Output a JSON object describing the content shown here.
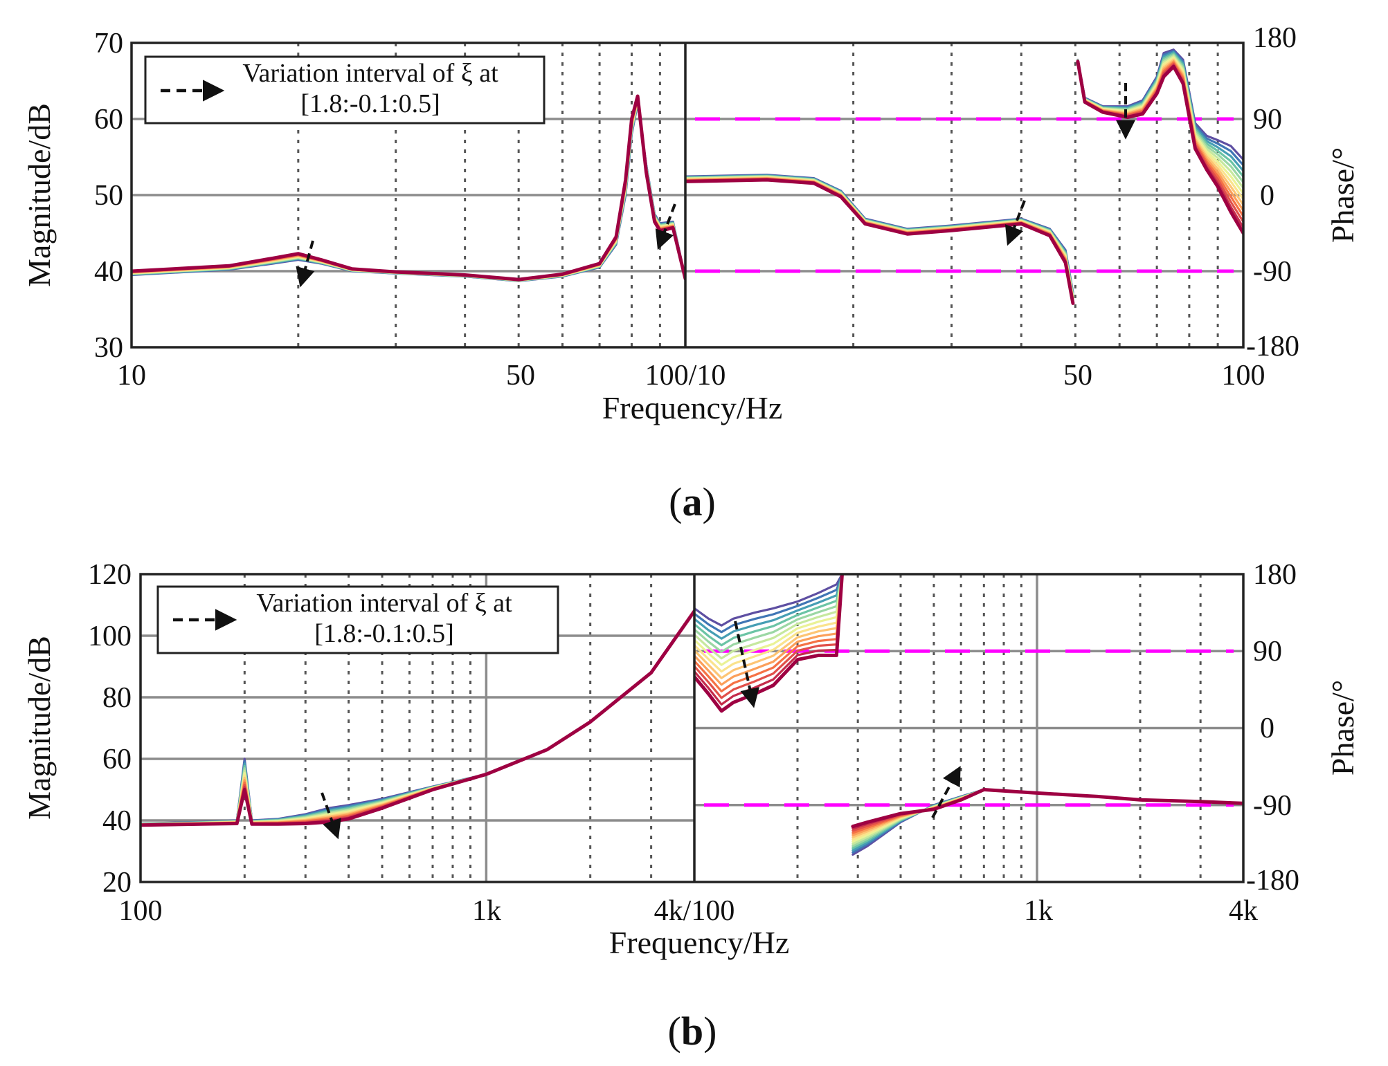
{
  "panels": [
    {
      "id": "a",
      "caption": "a",
      "xlabel": "Frequency/Hz",
      "ylabel_left": "Magnitude/dB",
      "ylabel_right": "Phase/°",
      "legend": {
        "line1": "Variation interval of ξ at",
        "line2": "[1.8:-0.1:0.5]"
      },
      "left_xticks": [
        "10",
        "50"
      ],
      "joint_tick": "100/10",
      "right_xticks": [
        "50",
        "100"
      ],
      "yticks_left": [
        "70",
        "60",
        "50",
        "40",
        "30"
      ],
      "yticks_right": [
        "180",
        "90",
        "0",
        "-90",
        "-180"
      ]
    },
    {
      "id": "b",
      "caption": "b",
      "xlabel": "Frequency/Hz",
      "ylabel_left": "Magnitude/dB",
      "ylabel_right": "Phase/°",
      "legend": {
        "line1": "Variation interval of ξ at",
        "line2": "[1.8:-0.1:0.5]"
      },
      "left_xticks": [
        "100",
        "1k"
      ],
      "joint_tick": "4k/100",
      "right_xticks": [
        "1k",
        "4k"
      ],
      "yticks_left": [
        "120",
        "100",
        "80",
        "60",
        "40",
        "20"
      ],
      "yticks_right": [
        "180",
        "90",
        "0",
        "-90",
        "-180"
      ]
    }
  ],
  "chart_data": [
    {
      "type": "line",
      "panel": "a",
      "subplot": "magnitude",
      "title": "",
      "xlabel": "Frequency/Hz",
      "ylabel": "Magnitude/dB",
      "xscale": "log",
      "xlim": [
        10,
        100
      ],
      "ylim": [
        30,
        70
      ],
      "parameter": "ξ",
      "parameter_values": [
        1.8,
        0.5
      ],
      "series": [
        {
          "name": "ξ=1.8",
          "color": "#5e4fa2",
          "x": [
            10,
            15,
            18,
            20,
            22,
            25,
            30,
            40,
            50,
            60,
            70,
            75,
            78,
            80,
            82,
            85,
            88,
            90,
            95,
            100
          ],
          "y": [
            39.5,
            40.2,
            41.0,
            41.5,
            41.0,
            40.0,
            39.7,
            39.3,
            38.7,
            39.3,
            40.5,
            43.5,
            50.0,
            58.0,
            62.0,
            54.0,
            47.5,
            46.3,
            46.5,
            39.0
          ]
        },
        {
          "name": "ξ=0.5",
          "color": "#9e0142",
          "x": [
            10,
            15,
            18,
            20,
            22,
            25,
            30,
            40,
            50,
            60,
            70,
            75,
            78,
            80,
            82,
            85,
            88,
            90,
            95,
            100
          ],
          "y": [
            40.0,
            40.7,
            41.7,
            42.3,
            41.5,
            40.3,
            39.9,
            39.5,
            38.9,
            39.6,
            41.0,
            44.5,
            52.0,
            60.0,
            63.0,
            53.0,
            46.5,
            45.3,
            45.7,
            39.0
          ]
        }
      ]
    },
    {
      "type": "line",
      "panel": "a",
      "subplot": "phase",
      "title": "",
      "xlabel": "Frequency/Hz",
      "ylabel": "Phase/°",
      "xscale": "log",
      "xlim": [
        10,
        100
      ],
      "ylim": [
        -180,
        180
      ],
      "reference_lines": [
        90,
        -90
      ],
      "reference_color": "#ff00ff",
      "series": [
        {
          "name": "ξ=1.8",
          "color": "#5e4fa2",
          "x": [
            10,
            14,
            17,
            19,
            21,
            25,
            30,
            40,
            45,
            48,
            49.5,
            50.5,
            52,
            56,
            62,
            66,
            70,
            72,
            75,
            78,
            82,
            86,
            90,
            95,
            100
          ],
          "y": [
            22,
            24,
            20,
            5,
            -28,
            -40,
            -36,
            -28,
            -40,
            -65,
            -115,
            160,
            115,
            105,
            105,
            112,
            140,
            168,
            172,
            160,
            85,
            70,
            65,
            58,
            42
          ]
        },
        {
          "name": "ξ=0.5",
          "color": "#9e0142",
          "x": [
            10,
            14,
            17,
            19,
            21,
            25,
            30,
            40,
            45,
            48,
            49.5,
            50.5,
            52,
            56,
            62,
            66,
            70,
            72,
            75,
            78,
            82,
            86,
            90,
            95,
            100
          ],
          "y": [
            16,
            18,
            14,
            -2,
            -34,
            -46,
            -42,
            -34,
            -48,
            -80,
            -128,
            158,
            110,
            98,
            92,
            96,
            120,
            140,
            152,
            132,
            55,
            30,
            10,
            -20,
            -45
          ]
        }
      ]
    },
    {
      "type": "line",
      "panel": "b",
      "subplot": "magnitude",
      "title": "",
      "xlabel": "Frequency/Hz",
      "ylabel": "Magnitude/dB",
      "xscale": "log",
      "xlim": [
        100,
        4000
      ],
      "ylim": [
        20,
        120
      ],
      "series": [
        {
          "name": "ξ=1.8",
          "color": "#5e4fa2",
          "x": [
            100,
            150,
            190,
            200,
            210,
            250,
            300,
            350,
            400,
            500,
            700,
            1000,
            1500,
            2000,
            3000,
            4000
          ],
          "y": [
            39.0,
            39.5,
            40.0,
            60.0,
            40.0,
            40.5,
            42.0,
            44.0,
            45.0,
            47.0,
            51.0,
            55.0,
            63.0,
            72.0,
            88.0,
            108.0
          ]
        },
        {
          "name": "ξ=0.5",
          "color": "#9e0142",
          "x": [
            100,
            150,
            190,
            200,
            210,
            250,
            300,
            350,
            400,
            500,
            700,
            1000,
            1500,
            2000,
            3000,
            4000
          ],
          "y": [
            38.5,
            38.8,
            39.0,
            50.0,
            38.8,
            38.8,
            39.0,
            39.5,
            40.5,
            44.0,
            50.0,
            55.0,
            63.0,
            72.0,
            88.0,
            108.0
          ]
        }
      ]
    },
    {
      "type": "line",
      "panel": "b",
      "subplot": "phase",
      "title": "",
      "xlabel": "Frequency/Hz",
      "ylabel": "Phase/°",
      "xscale": "log",
      "xlim": [
        100,
        4000
      ],
      "ylim": [
        -180,
        180
      ],
      "reference_lines": [
        90,
        -90
      ],
      "reference_color": "#ff00ff",
      "series": [
        {
          "name": "ξ=1.8",
          "color": "#5e4fa2",
          "x": [
            100,
            110,
            120,
            130,
            150,
            170,
            200,
            230,
            260,
            270,
            290,
            320,
            400,
            500,
            600,
            700,
            1000,
            1500,
            2000,
            3000,
            4000
          ],
          "y": [
            140,
            128,
            120,
            128,
            135,
            140,
            148,
            158,
            168,
            180,
            -148,
            -138,
            -110,
            -90,
            -80,
            -72,
            -76,
            -80,
            -84,
            -86,
            -88
          ]
        },
        {
          "name": "ξ=0.5",
          "color": "#9e0142",
          "x": [
            100,
            110,
            120,
            130,
            150,
            170,
            200,
            230,
            260,
            270,
            290,
            320,
            400,
            500,
            600,
            700,
            1000,
            1500,
            2000,
            3000,
            4000
          ],
          "y": [
            60,
            40,
            20,
            30,
            40,
            50,
            80,
            85,
            85,
            180,
            -115,
            -110,
            -100,
            -95,
            -84,
            -72,
            -76,
            -80,
            -84,
            -86,
            -88
          ]
        }
      ]
    }
  ]
}
